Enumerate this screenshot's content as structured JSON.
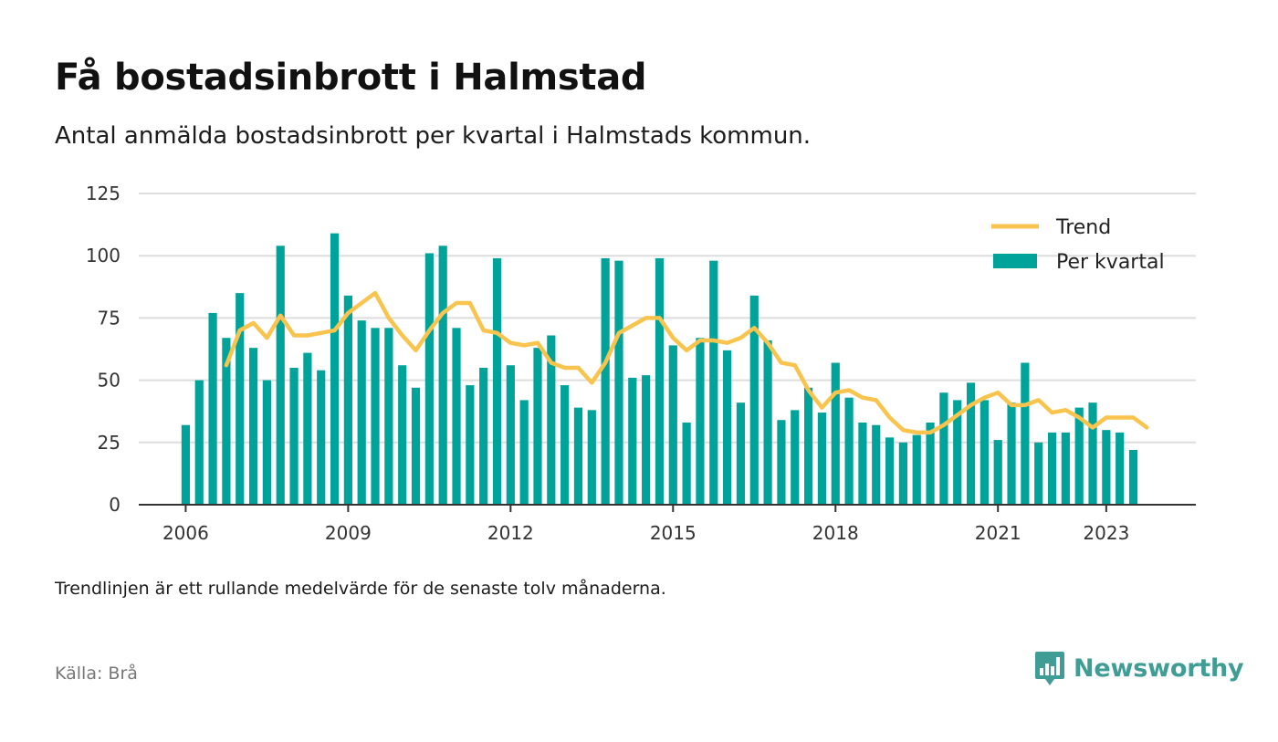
{
  "header": {
    "title": "Få bostadsinbrott i Halmstad",
    "subtitle": "Antal anmälda bostadsinbrott per kvartal i Halmstads kommun."
  },
  "footer": {
    "note": "Trendlinjen är ett rullande medelvärde för de senaste tolv månaderna.",
    "source": "Källa: Brå",
    "brand": "Newsworthy"
  },
  "chart_data": {
    "type": "bar",
    "title": "Få bostadsinbrott i Halmstad",
    "subtitle": "Antal anmälda bostadsinbrott per kvartal i Halmstads kommun.",
    "xlabel": "",
    "ylabel": "",
    "ylim": [
      0,
      125
    ],
    "yticks": [
      0,
      25,
      50,
      75,
      100,
      125
    ],
    "xticks": [
      {
        "label": "2006",
        "year": 2006
      },
      {
        "label": "2009",
        "year": 2009
      },
      {
        "label": "2012",
        "year": 2012
      },
      {
        "label": "2015",
        "year": 2015
      },
      {
        "label": "2018",
        "year": 2018
      },
      {
        "label": "2021",
        "year": 2021
      },
      {
        "label": "2023",
        "year": 2023
      }
    ],
    "grid": true,
    "legend_position": "top-right",
    "colors": {
      "bars": "#00a39a",
      "trend": "#f8c44e",
      "grid": "#dddddd",
      "axis": "#333333"
    },
    "series": [
      {
        "name": "Per kvartal",
        "kind": "bar",
        "start": "2006 Q1",
        "values": [
          32,
          50,
          77,
          67,
          85,
          63,
          50,
          104,
          55,
          61,
          54,
          109,
          84,
          74,
          71,
          71,
          56,
          47,
          101,
          104,
          71,
          48,
          55,
          99,
          56,
          42,
          63,
          68,
          48,
          39,
          38,
          99,
          98,
          51,
          52,
          99,
          64,
          33,
          67,
          98,
          62,
          41,
          84,
          66,
          34,
          38,
          47,
          37,
          57,
          43,
          33,
          32,
          27,
          25,
          28,
          33,
          45,
          42,
          49,
          42,
          26,
          41,
          57,
          25,
          29,
          29,
          39,
          41,
          30,
          29,
          22
        ]
      },
      {
        "name": "Trend",
        "kind": "line",
        "start": "2006 Q4",
        "values": [
          56,
          70,
          73,
          67,
          76,
          68,
          68,
          69,
          70,
          77,
          81,
          85,
          75,
          68,
          62,
          70,
          77,
          81,
          81,
          70,
          69,
          65,
          64,
          65,
          57,
          55,
          55,
          49,
          57,
          69,
          72,
          75,
          75,
          67,
          62,
          66,
          66,
          65,
          67,
          71,
          65,
          57,
          56,
          46,
          39,
          45,
          46,
          43,
          42,
          35,
          30,
          29,
          29,
          32,
          36,
          40,
          43,
          45,
          40,
          40,
          42,
          37,
          38,
          35,
          31,
          35,
          35,
          35,
          31
        ]
      }
    ]
  }
}
